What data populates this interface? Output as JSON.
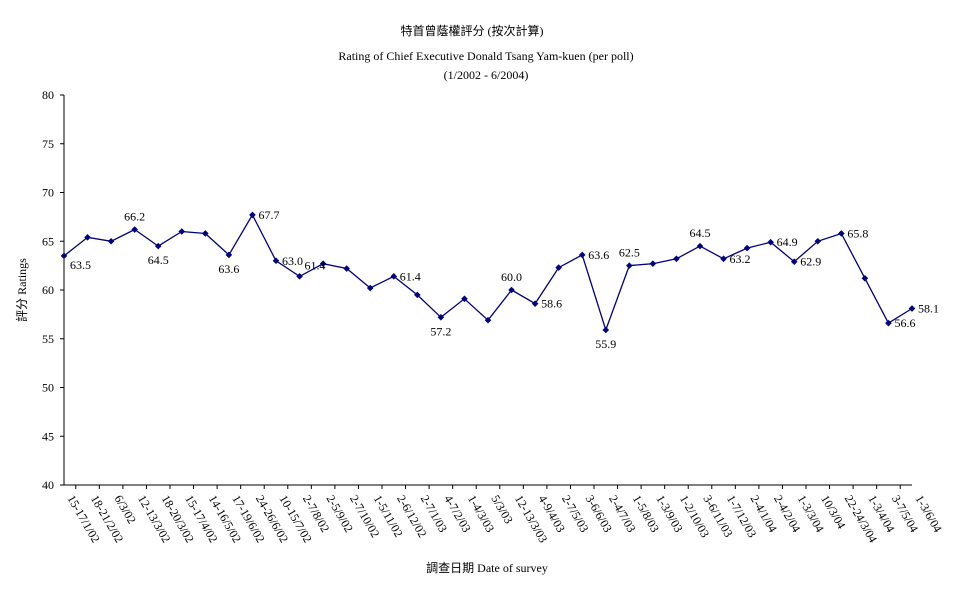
{
  "chart_data": {
    "type": "line",
    "title": "特首曾蔭權評分 (按次計算)",
    "subtitle": "Rating of Chief Executive Donald Tsang Yam-kuen  (per poll)",
    "subtitle2": "(1/2002 - 6/2004)",
    "xlabel": "調查日期 Date of survey",
    "ylabel": "評分 Ratings",
    "ylim": [
      40,
      80
    ],
    "yticks": [
      "40",
      "45",
      "50",
      "55",
      "60",
      "65",
      "70",
      "75",
      "80"
    ],
    "grid": false,
    "legend": "none",
    "color": "#000080",
    "categories": [
      "15-17/1/02",
      "18-21/2/02",
      "6/3/02",
      "12-13/3/02",
      "18-20/3/02",
      "15-17/4/02",
      "14-16/5/02",
      "17-19/6/02",
      "24-26/6/02",
      "10-15/7/02",
      "2-7/8/02",
      "2-5/9/02",
      "2-7/10/02",
      "1-5/11/02",
      "2-6/12/02",
      "2-7/1/03",
      "4-7/2/03",
      "1-4/3/03",
      "5/3/03",
      "12-13/3/03",
      "4-9/4/03",
      "2-7/5/03",
      "3-6/6/03",
      "2-4/7/03",
      "1-5/8/03",
      "1-3/9/03",
      "1-2/10/03",
      "3-6/11/03",
      "1-7/12/03",
      "2-4/1/04",
      "2-4/2/04",
      "1-3/3/04",
      "10/3/04",
      "22-24/3/04",
      "1-3/4/04",
      "3-7/5/04",
      "1-3/6/04"
    ],
    "values": [
      63.5,
      65.4,
      65.0,
      66.2,
      64.5,
      66.0,
      65.8,
      63.6,
      67.7,
      63.0,
      61.4,
      62.7,
      62.2,
      60.2,
      61.4,
      59.5,
      57.2,
      59.1,
      56.9,
      60.0,
      58.6,
      62.3,
      63.6,
      55.9,
      62.5,
      62.7,
      63.2,
      64.5,
      63.2,
      64.3,
      64.9,
      62.9,
      65.0,
      65.8,
      61.2,
      56.6,
      58.1
    ],
    "data_labels": [
      {
        "index": 0,
        "text": "63.5",
        "pos": "right-below"
      },
      {
        "index": 3,
        "text": "66.2",
        "pos": "above"
      },
      {
        "index": 4,
        "text": "64.5",
        "pos": "below"
      },
      {
        "index": 7,
        "text": "63.6",
        "pos": "below"
      },
      {
        "index": 8,
        "text": "67.7",
        "pos": "right"
      },
      {
        "index": 9,
        "text": "63.0",
        "pos": "right"
      },
      {
        "index": 10,
        "text": "61.4",
        "pos": "right-above"
      },
      {
        "index": 14,
        "text": "61.4",
        "pos": "right"
      },
      {
        "index": 16,
        "text": "57.2",
        "pos": "below"
      },
      {
        "index": 19,
        "text": "60.0",
        "pos": "above"
      },
      {
        "index": 20,
        "text": "58.6",
        "pos": "right"
      },
      {
        "index": 22,
        "text": "63.6",
        "pos": "right"
      },
      {
        "index": 23,
        "text": "55.9",
        "pos": "below"
      },
      {
        "index": 24,
        "text": "62.5",
        "pos": "above"
      },
      {
        "index": 27,
        "text": "64.5",
        "pos": "above"
      },
      {
        "index": 28,
        "text": "63.2",
        "pos": "right"
      },
      {
        "index": 30,
        "text": "64.9",
        "pos": "right"
      },
      {
        "index": 31,
        "text": "62.9",
        "pos": "right"
      },
      {
        "index": 33,
        "text": "65.8",
        "pos": "right"
      },
      {
        "index": 35,
        "text": "56.6",
        "pos": "right"
      },
      {
        "index": 36,
        "text": "58.1",
        "pos": "right"
      }
    ]
  }
}
